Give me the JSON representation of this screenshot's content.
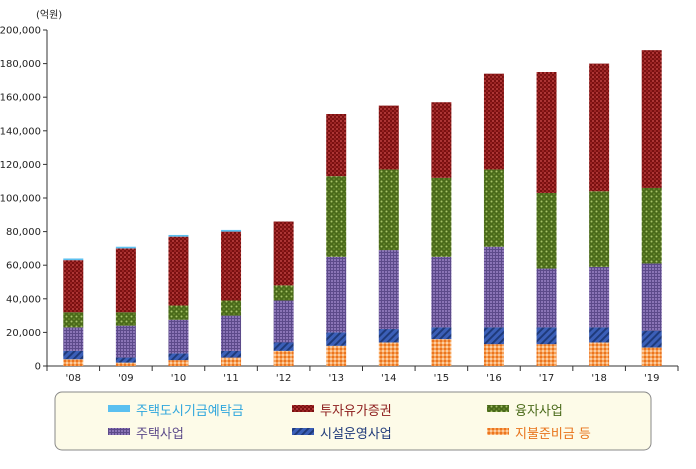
{
  "chart_data": {
    "type": "bar",
    "stacked": true,
    "unit_label": "(억원)",
    "categories": [
      "'08",
      "'09",
      "'10",
      "'11",
      "'12",
      "'13",
      "'14",
      "'15",
      "'16",
      "'17",
      "'18",
      "'19"
    ],
    "ylim": [
      0,
      200000
    ],
    "yticks": [
      "0",
      "20,000",
      "40,000",
      "60,000",
      "80,000",
      "100,000",
      "120,000",
      "140,000",
      "160,000",
      "180,000",
      "200,000"
    ],
    "grid": false,
    "legend_position": "bottom",
    "series": [
      {
        "name": "지불준비금 등",
        "color": "#f47c20",
        "pattern": "dots-orange",
        "values": [
          4000,
          2000,
          3500,
          5000,
          9000,
          12000,
          14000,
          16000,
          13000,
          13000,
          14000,
          11000
        ]
      },
      {
        "name": "시설운영사업",
        "color": "#2b4a9c",
        "pattern": "diag-blue",
        "values": [
          5000,
          3000,
          4000,
          4000,
          5000,
          8000,
          8000,
          7000,
          10000,
          10000,
          9000,
          10000
        ]
      },
      {
        "name": "주택사업",
        "color": "#7a64a6",
        "pattern": "grid-purple",
        "values": [
          14000,
          19000,
          20000,
          21000,
          25000,
          45000,
          47000,
          42000,
          48000,
          35000,
          36000,
          40000
        ]
      },
      {
        "name": "융자사업",
        "color": "#5a7a2a",
        "pattern": "dots-green",
        "values": [
          9000,
          8000,
          8500,
          9000,
          9000,
          48000,
          48000,
          47000,
          46000,
          45000,
          45000,
          45000
        ]
      },
      {
        "name": "투자유가증권",
        "color": "#8b1a1a",
        "pattern": "dots-red",
        "values": [
          31000,
          38000,
          41000,
          41000,
          38000,
          37000,
          38000,
          45000,
          57000,
          72000,
          76000,
          82000
        ]
      },
      {
        "name": "주택도시기금예탁금",
        "color": "#5bc0f0",
        "pattern": "solid-cyan",
        "values": [
          1000,
          1000,
          1000,
          1000,
          0,
          0,
          0,
          0,
          0,
          0,
          0,
          0
        ]
      }
    ]
  },
  "legend": {
    "order": [
      "주택도시기금예탁금",
      "투자유가증권",
      "융자사업",
      "주택사업",
      "시설운영사업",
      "지불준비금 등"
    ],
    "text_colors": {
      "주택도시기금예탁금": "#2ea6dd",
      "투자유가증권": "#8b1a1a",
      "융자사업": "#4a6a1a",
      "주택사업": "#5c4a8a",
      "시설운영사업": "#1f3a7a",
      "지불준비금 등": "#e8731a"
    }
  }
}
